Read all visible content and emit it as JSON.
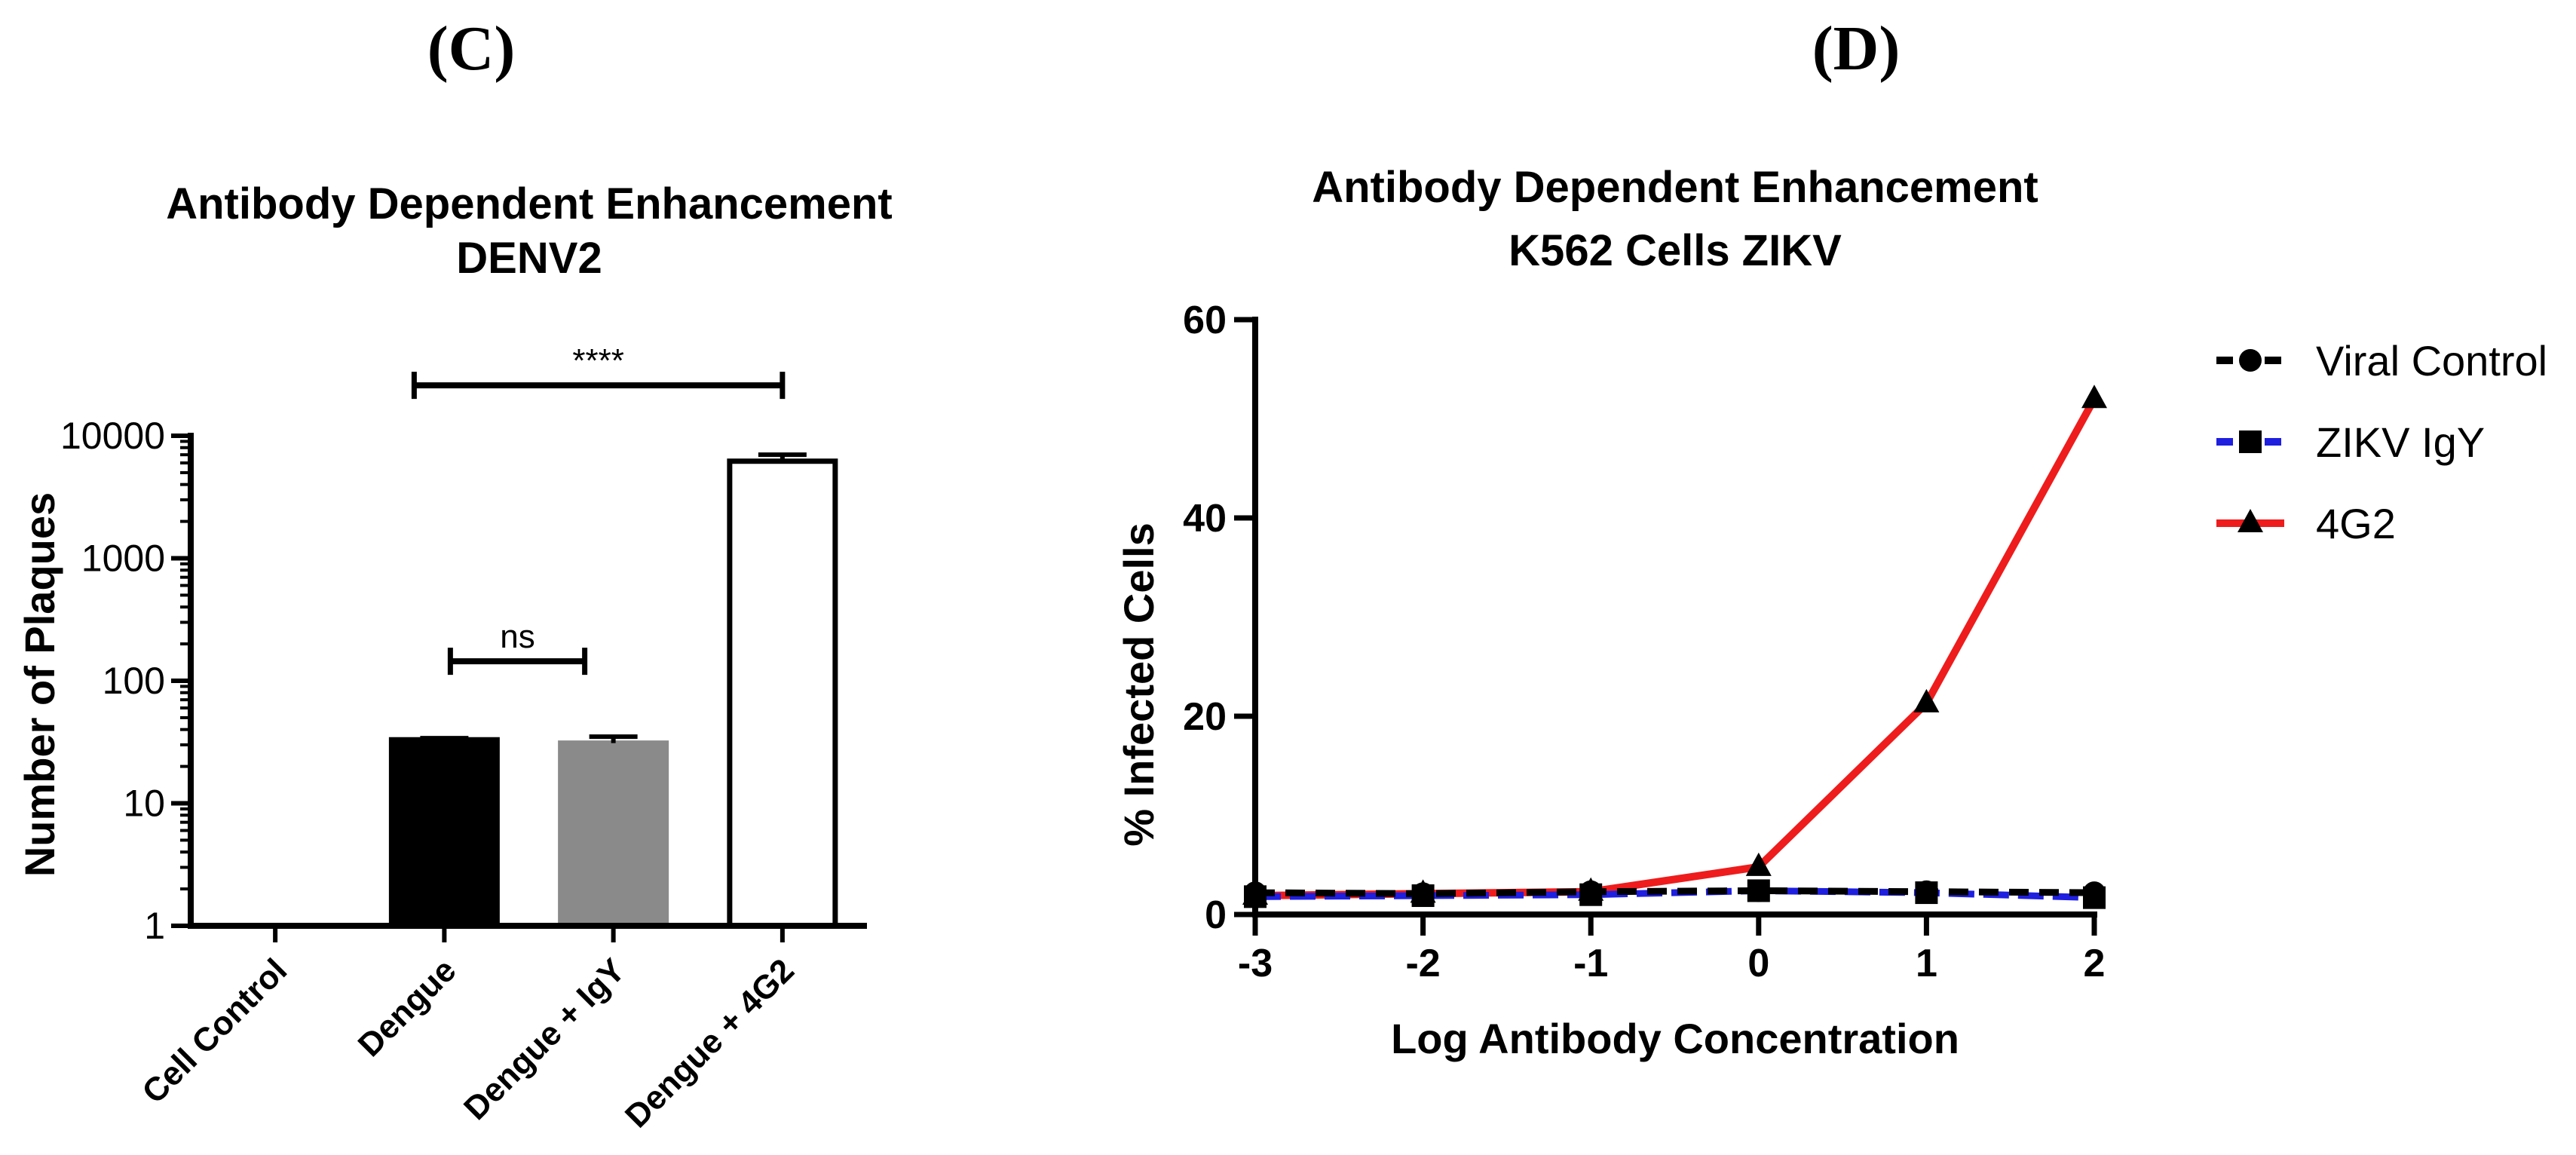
{
  "panels": {
    "left_label": "(C)",
    "right_label": "(D)"
  },
  "chart_data": [
    {
      "type": "bar",
      "title": "Antibody Dependent Enhancement",
      "subtitle": "DENV2",
      "xlabel": "",
      "ylabel": "Number of Plaques",
      "yscale": "log",
      "ylim": [
        1,
        10000
      ],
      "yticks": [
        "1",
        "10",
        "100",
        "1000",
        "10000"
      ],
      "categories": [
        "Cell Control",
        "Dengue",
        "Dengue + IgY",
        "Dengue + 4G2"
      ],
      "values": [
        0,
        33,
        31,
        6200
      ],
      "error_upper": [
        0,
        34,
        35,
        7000
      ],
      "bar_fills": [
        "#000000",
        "#000000",
        "#8a8a8a",
        "#ffffff"
      ],
      "annotations": [
        {
          "text": "****",
          "from": "Dengue",
          "to": "Dengue + 4G2"
        },
        {
          "text": "ns",
          "from": "Dengue",
          "to": "Dengue + IgY"
        }
      ]
    },
    {
      "type": "line",
      "title": "Antibody Dependent Enhancement",
      "subtitle": "K562 Cells ZIKV",
      "xlabel": "Log Antibody Concentration",
      "ylabel": "% Infected Cells",
      "xlim": [
        -3,
        2
      ],
      "ylim": [
        0,
        60
      ],
      "xticks": [
        "-3",
        "-2",
        "-1",
        "0",
        "1",
        "2"
      ],
      "yticks": [
        "0",
        "20",
        "40",
        "60"
      ],
      "x": [
        -3,
        -2,
        -1,
        0,
        1,
        2
      ],
      "legend_position": "right",
      "series": [
        {
          "name": "Viral Control",
          "values": [
            2.2,
            2.1,
            2.3,
            2.4,
            2.3,
            2.2
          ],
          "color": "#000000",
          "marker": "circle",
          "dash": true
        },
        {
          "name": "ZIKV IgY",
          "values": [
            1.8,
            1.9,
            2.0,
            2.4,
            2.2,
            1.7
          ],
          "color": "#1f1fe0",
          "marker": "square",
          "dash": true
        },
        {
          "name": "4G2",
          "values": [
            1.9,
            2.1,
            2.3,
            4.8,
            21.3,
            52.0
          ],
          "color": "#ee1c1c",
          "marker": "triangle",
          "dash": false
        }
      ]
    }
  ]
}
